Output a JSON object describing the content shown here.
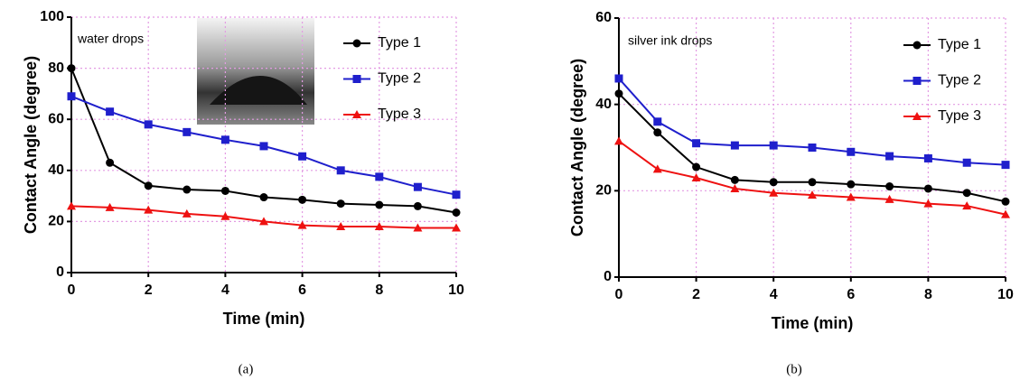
{
  "chart_data": [
    {
      "type": "line",
      "caption": "(a)",
      "annotation": "water drops",
      "xlabel": "Time (min)",
      "ylabel": "Contact Angle (degree)",
      "x": [
        0,
        1,
        2,
        3,
        4,
        5,
        6,
        7,
        8,
        9,
        10
      ],
      "xlim": [
        0,
        10
      ],
      "xticks": [
        0,
        2,
        4,
        6,
        8,
        10
      ],
      "ylim": [
        0,
        100
      ],
      "yticks": [
        0,
        20,
        40,
        60,
        80,
        100
      ],
      "grid": true,
      "legend": "upper right",
      "series": [
        {
          "name": "Type 1",
          "color": "#000000",
          "marker": "circle",
          "values": [
            80,
            43,
            34,
            32.5,
            32,
            29.5,
            28.5,
            27,
            26.5,
            26,
            23.5
          ]
        },
        {
          "name": "Type 2",
          "color": "#1f1fcc",
          "marker": "square",
          "values": [
            69,
            63,
            58,
            55,
            52,
            49.5,
            45.5,
            40,
            37.5,
            33.5,
            30.5
          ]
        },
        {
          "name": "Type 3",
          "color": "#ee1111",
          "marker": "triangle",
          "values": [
            26,
            25.5,
            24.5,
            23,
            22,
            20,
            18.5,
            18,
            18,
            17.5,
            17.5
          ]
        }
      ]
    },
    {
      "type": "line",
      "caption": "(b)",
      "annotation": "silver ink drops",
      "xlabel": "Time (min)",
      "ylabel": "Contact Angle (degree)",
      "x": [
        0,
        1,
        2,
        3,
        4,
        5,
        6,
        7,
        8,
        9,
        10
      ],
      "xlim": [
        0,
        10
      ],
      "xticks": [
        0,
        2,
        4,
        6,
        8,
        10
      ],
      "ylim": [
        0,
        60
      ],
      "yticks": [
        0,
        20,
        40,
        60
      ],
      "grid": true,
      "legend": "upper right",
      "series": [
        {
          "name": "Type 1",
          "color": "#000000",
          "marker": "circle",
          "values": [
            42.5,
            33.5,
            25.5,
            22.5,
            22,
            22,
            21.5,
            21,
            20.5,
            19.5,
            17.5
          ]
        },
        {
          "name": "Type 2",
          "color": "#1f1fcc",
          "marker": "square",
          "values": [
            46,
            36,
            31,
            30.5,
            30.5,
            30,
            29,
            28,
            27.5,
            26.5,
            26
          ]
        },
        {
          "name": "Type 3",
          "color": "#ee1111",
          "marker": "triangle",
          "values": [
            31.5,
            25,
            23,
            20.5,
            19.5,
            19,
            18.5,
            18,
            17,
            16.5,
            14.5
          ]
        }
      ]
    }
  ]
}
